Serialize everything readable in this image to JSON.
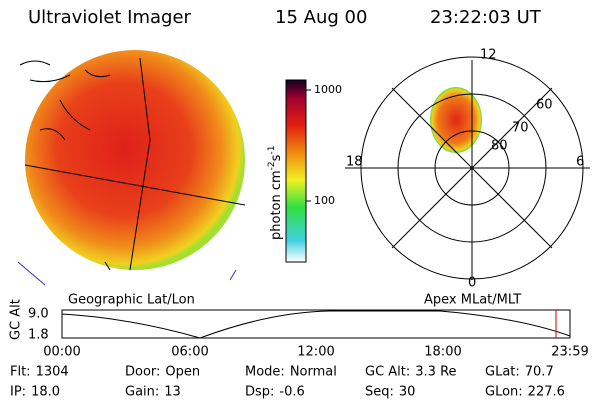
{
  "header": {
    "title": "Ultraviolet Imager",
    "date": "15 Aug 00",
    "time": "23:22:03 UT"
  },
  "colorbar": {
    "unit": "photon cm",
    "exp1": "-2",
    "unit2": "s",
    "exp2": "-1",
    "ticks": [
      "1000",
      "100"
    ]
  },
  "polar": {
    "mlt_labels": [
      "12",
      "18",
      "6",
      "0"
    ],
    "lat_labels": [
      "60",
      "70",
      "80"
    ]
  },
  "panels": {
    "left": "Geographic Lat/Lon",
    "right": "Apex MLat/MLT"
  },
  "altitude": {
    "ylabel": "GC Alt",
    "yticks": [
      "9.0",
      "1.8"
    ],
    "xticks": [
      "00:00",
      "06:00",
      "12:00",
      "18:00",
      "23:59"
    ]
  },
  "footer": {
    "rows": [
      [
        {
          "label": "Flt:",
          "value": "1304"
        },
        {
          "label": "Door:",
          "value": "Open"
        },
        {
          "label": "Mode:",
          "value": "Normal"
        },
        {
          "label": "GC Alt:",
          "value": "3.3 Re"
        },
        {
          "label": "GLat:",
          "value": "70.7"
        }
      ],
      [
        {
          "label": "IP:",
          "value": "18.0"
        },
        {
          "label": "Gain:",
          "value": "13"
        },
        {
          "label": "Dsp:",
          "value": "-0.6"
        },
        {
          "label": "Seq:",
          "value": "30"
        },
        {
          "label": "GLon:",
          "value": "227.6"
        }
      ]
    ]
  }
}
